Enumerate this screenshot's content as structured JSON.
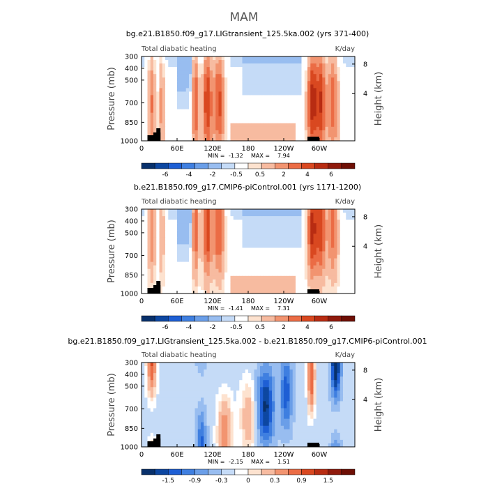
{
  "figure": {
    "title": "MAM"
  },
  "palettes": {
    "full": [
      "#08306b",
      "#0d47a1",
      "#1e5fd4",
      "#3f7fe0",
      "#6a9ee8",
      "#98bdf0",
      "#c5dbf7",
      "#ffffff",
      "#fde2cf",
      "#f7bba0",
      "#f29470",
      "#eb6c45",
      "#d94820",
      "#b82c12",
      "#8f1a0c",
      "#6e0f05"
    ],
    "diff": [
      "#08306b",
      "#0d47a1",
      "#1e5fd4",
      "#3f7fe0",
      "#6a9ee8",
      "#98bdf0",
      "#c5dbf7",
      "#ffffff",
      "#fde2cf",
      "#f7bba0",
      "#f29470",
      "#eb6c45",
      "#d94820",
      "#b82c12",
      "#8f1a0c",
      "#6e0f05"
    ]
  },
  "chart_data": [
    {
      "type": "heatmap",
      "title": "bg.e21.B1850.f09_g17.LIGtransient_125.5ka.002 (yrs 371-400)",
      "left_label": "Total diabatic heating",
      "right_label": "K/day",
      "ylabel": "Pressure (mb)",
      "ylabel_right": "Height (km)",
      "x_ticks": [
        "0",
        "60E",
        "120E",
        "180",
        "120W",
        "60W"
      ],
      "y_ticks": [
        "300",
        "400",
        "500",
        "700",
        "850",
        "1000"
      ],
      "height_ticks": [
        "8",
        "4"
      ],
      "stats": {
        "min_label": "MIN =",
        "min": "-1.32",
        "max_label": "MAX =",
        "max": "7.94"
      },
      "colorbar_labels": [
        "-6",
        "-4",
        "-2",
        "-0.5",
        "0.5",
        "2",
        "4",
        "6"
      ],
      "palette": "full"
    },
    {
      "type": "heatmap",
      "title": "b.e21.B1850.f09_g17.CMIP6-piControl.001 (yrs 1171-1200)",
      "left_label": "Total diabatic heating",
      "right_label": "K/day",
      "ylabel": "Pressure (mb)",
      "ylabel_right": "Height (km)",
      "x_ticks": [
        "0",
        "60E",
        "120E",
        "180",
        "120W",
        "60W"
      ],
      "y_ticks": [
        "300",
        "400",
        "500",
        "700",
        "850",
        "1000"
      ],
      "height_ticks": [
        "8",
        "4"
      ],
      "stats": {
        "min_label": "MIN =",
        "min": "-1.41",
        "max_label": "MAX =",
        "max": "7.31"
      },
      "colorbar_labels": [
        "-6",
        "-4",
        "-2",
        "-0.5",
        "0.5",
        "2",
        "4",
        "6"
      ],
      "palette": "full"
    },
    {
      "type": "heatmap",
      "title": "bg.e21.B1850.f09_g17.LIGtransient_125.5ka.002 - b.e21.B1850.f09_g17.CMIP6-piControl.001",
      "left_label": "Total diabatic heating",
      "right_label": "K/day",
      "ylabel": "Pressure (mb)",
      "ylabel_right": "Height (km)",
      "x_ticks": [
        "0",
        "60E",
        "120E",
        "180",
        "120W",
        "60W"
      ],
      "y_ticks": [
        "300",
        "400",
        "500",
        "700",
        "850",
        "1000"
      ],
      "height_ticks": [
        "8",
        "4"
      ],
      "stats": {
        "min_label": "MIN =",
        "min": "-2.15",
        "max_label": "MAX =",
        "max": "1.51"
      },
      "colorbar_labels": [
        "-1.5",
        "-0.9",
        "-0.3",
        "0",
        "0.3",
        "0.9",
        "1.5"
      ],
      "palette": "diff"
    }
  ]
}
